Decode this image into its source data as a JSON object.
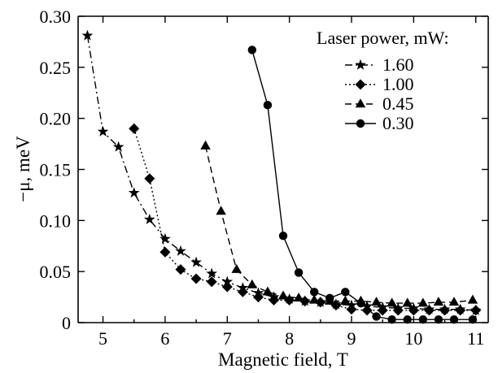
{
  "chart_data": {
    "type": "line",
    "title": "",
    "xlabel": "Magnetic field, T",
    "ylabel": "−μ, meV",
    "xlim": [
      4.6,
      11.2
    ],
    "ylim": [
      0,
      0.3
    ],
    "xticks": [
      5,
      6,
      7,
      8,
      9,
      10,
      11
    ],
    "yticks": [
      0,
      0.05,
      0.1,
      0.15,
      0.2,
      0.25,
      0.3
    ],
    "xtick_labels": [
      "5",
      "6",
      "7",
      "8",
      "9",
      "10",
      "11"
    ],
    "ytick_labels": [
      "0",
      "0.05",
      "0.10",
      "0.15",
      "0.20",
      "0.25",
      "0.30"
    ],
    "grid": false,
    "legend_title": "Laser power, mW:",
    "legend_position": "top-right",
    "series": [
      {
        "name": "1.60",
        "marker": "star",
        "dash": "dash-dot",
        "x": [
          4.75,
          5.0,
          5.25,
          5.5,
          5.75,
          6.0,
          6.25,
          6.5,
          6.75,
          7.0,
          7.25,
          7.5,
          7.75,
          8.0,
          8.25,
          8.5,
          8.75,
          9.0,
          9.25,
          9.5,
          9.75,
          10.0,
          10.25,
          10.5,
          10.75,
          11.0
        ],
        "y": [
          0.281,
          0.187,
          0.172,
          0.127,
          0.101,
          0.082,
          0.07,
          0.059,
          0.048,
          0.04,
          0.034,
          0.029,
          0.025,
          0.023,
          0.021,
          0.02,
          0.018,
          0.017,
          0.016,
          0.015,
          0.014,
          0.014,
          0.013,
          0.013,
          0.013,
          0.012
        ]
      },
      {
        "name": "1.00",
        "marker": "diamond",
        "dash": "dotted",
        "x": [
          5.5,
          5.75,
          6.0,
          6.25,
          6.5,
          6.75,
          7.0,
          7.25,
          7.5,
          7.75,
          8.0,
          8.25,
          8.5,
          8.75,
          9.0,
          9.25,
          9.5,
          9.75,
          10.0,
          10.25,
          10.5,
          10.75,
          11.0
        ],
        "y": [
          0.19,
          0.141,
          0.069,
          0.052,
          0.043,
          0.04,
          0.035,
          0.03,
          0.025,
          0.022,
          0.022,
          0.021,
          0.02,
          0.017,
          0.013,
          0.012,
          0.012,
          0.012,
          0.012,
          0.012,
          0.012,
          0.012,
          0.012
        ]
      },
      {
        "name": "0.45",
        "marker": "triangle",
        "dash": "dashed",
        "x": [
          6.65,
          6.9,
          7.15,
          7.4,
          7.65,
          7.9,
          8.15,
          8.4,
          8.65,
          8.9,
          9.15,
          9.4,
          9.65,
          9.9,
          10.15,
          10.4,
          10.65,
          10.95
        ],
        "y": [
          0.173,
          0.109,
          0.052,
          0.037,
          0.03,
          0.026,
          0.024,
          0.022,
          0.021,
          0.021,
          0.021,
          0.02,
          0.019,
          0.019,
          0.019,
          0.02,
          0.02,
          0.022
        ]
      },
      {
        "name": "0.30",
        "marker": "circle",
        "dash": "solid",
        "x": [
          7.4,
          7.65,
          7.9,
          8.15,
          8.4,
          8.65,
          8.9,
          9.15,
          9.4,
          9.65,
          9.9,
          10.15,
          10.4,
          10.65,
          10.95
        ],
        "y": [
          0.267,
          0.213,
          0.085,
          0.049,
          0.03,
          0.024,
          0.03,
          0.019,
          0.006,
          0.003,
          0.003,
          0.003,
          0.003,
          0.003,
          0.003
        ]
      }
    ]
  }
}
